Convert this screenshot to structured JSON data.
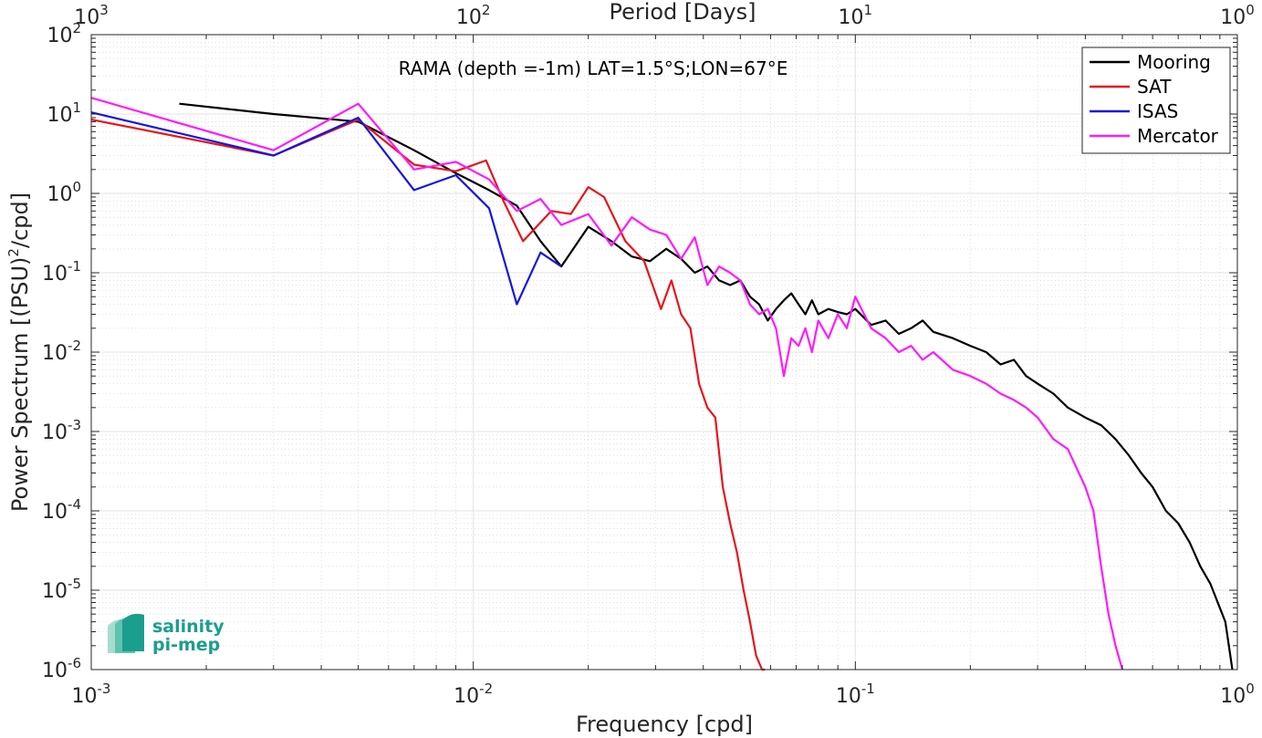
{
  "chart_data": {
    "type": "line",
    "title": "RAMA (depth =-1m) LAT=1.5°S;LON=67°E",
    "xlabel": "Frequency [cpd]",
    "ylabel_main": "Power Spectrum [(PSU)",
    "ylabel_sup": "2",
    "ylabel_end": "/cpd]",
    "top_xlabel": "Period [Days]",
    "x_scale": "log",
    "y_scale": "log",
    "xlim": [
      0.001,
      1
    ],
    "ylim": [
      1e-06,
      100
    ],
    "grid": true,
    "legend_position": "top-right",
    "x_ticks": [
      {
        "v": 0.001,
        "b": "10",
        "e": "-3"
      },
      {
        "v": 0.01,
        "b": "10",
        "e": "-2"
      },
      {
        "v": 0.1,
        "b": "10",
        "e": "-1"
      },
      {
        "v": 1,
        "b": "10",
        "e": "0"
      }
    ],
    "top_ticks": [
      {
        "v": 0.001,
        "b": "10",
        "e": "3"
      },
      {
        "v": 0.01,
        "b": "10",
        "e": "2"
      },
      {
        "v": 0.1,
        "b": "10",
        "e": "1"
      },
      {
        "v": 1,
        "b": "10",
        "e": "0"
      }
    ],
    "y_ticks": [
      {
        "v": 100,
        "b": "10",
        "e": "2"
      },
      {
        "v": 10,
        "b": "10",
        "e": "1"
      },
      {
        "v": 1,
        "b": "10",
        "e": "0"
      },
      {
        "v": 0.1,
        "b": "10",
        "e": "-1"
      },
      {
        "v": 0.01,
        "b": "10",
        "e": "-2"
      },
      {
        "v": 0.001,
        "b": "10",
        "e": "-3"
      },
      {
        "v": 0.0001,
        "b": "10",
        "e": "-4"
      },
      {
        "v": 1e-05,
        "b": "10",
        "e": "-5"
      },
      {
        "v": 1e-06,
        "b": "10",
        "e": "-6"
      }
    ],
    "series": [
      {
        "name": "Mooring",
        "color": "#000000",
        "x": [
          0.0017,
          0.003,
          0.005,
          0.007,
          0.009,
          0.011,
          0.013,
          0.015,
          0.017,
          0.02,
          0.023,
          0.026,
          0.029,
          0.032,
          0.035,
          0.038,
          0.041,
          0.044,
          0.047,
          0.05,
          0.053,
          0.056,
          0.059,
          0.062,
          0.065,
          0.068,
          0.071,
          0.074,
          0.077,
          0.08,
          0.085,
          0.09,
          0.095,
          0.1,
          0.11,
          0.12,
          0.13,
          0.14,
          0.15,
          0.16,
          0.18,
          0.2,
          0.22,
          0.24,
          0.26,
          0.28,
          0.3,
          0.33,
          0.36,
          0.4,
          0.44,
          0.48,
          0.52,
          0.56,
          0.6,
          0.65,
          0.7,
          0.75,
          0.8,
          0.85,
          0.9,
          0.93,
          0.95,
          0.97
        ],
        "y": [
          13.5,
          10,
          8,
          3.5,
          1.8,
          1.1,
          0.7,
          0.25,
          0.12,
          0.38,
          0.25,
          0.16,
          0.14,
          0.2,
          0.15,
          0.1,
          0.12,
          0.08,
          0.07,
          0.08,
          0.05,
          0.04,
          0.025,
          0.035,
          0.045,
          0.055,
          0.04,
          0.03,
          0.045,
          0.03,
          0.035,
          0.032,
          0.03,
          0.035,
          0.022,
          0.025,
          0.017,
          0.02,
          0.025,
          0.018,
          0.015,
          0.012,
          0.01,
          0.007,
          0.008,
          0.005,
          0.004,
          0.003,
          0.002,
          0.0015,
          0.0012,
          0.0008,
          0.0005,
          0.0003,
          0.0002,
          0.0001,
          7e-05,
          4e-05,
          2e-05,
          1.2e-05,
          6e-06,
          4e-06,
          2e-06,
          1e-06
        ]
      },
      {
        "name": "SAT",
        "color": "#e6151b",
        "x": [
          0.001,
          0.003,
          0.005,
          0.007,
          0.009,
          0.0108,
          0.012,
          0.0135,
          0.016,
          0.018,
          0.02,
          0.022,
          0.025,
          0.028,
          0.031,
          0.033,
          0.035,
          0.037,
          0.039,
          0.041,
          0.043,
          0.045,
          0.047,
          0.049,
          0.051,
          0.053,
          0.055,
          0.057,
          0.058
        ],
        "y": [
          8.5,
          3,
          8.5,
          2.3,
          1.9,
          2.6,
          0.8,
          0.25,
          0.6,
          0.55,
          1.2,
          0.9,
          0.25,
          0.14,
          0.035,
          0.08,
          0.03,
          0.02,
          0.004,
          0.002,
          0.0015,
          0.0002,
          7e-05,
          3e-05,
          1e-05,
          4e-06,
          1.5e-06,
          1e-06,
          1e-06
        ]
      },
      {
        "name": "ISAS",
        "color": "#1515e0",
        "x": [
          0.001,
          0.003,
          0.005,
          0.007,
          0.009,
          0.011,
          0.013,
          0.015,
          0.017
        ],
        "y": [
          10.5,
          3,
          9,
          1.1,
          1.7,
          0.65,
          0.04,
          0.18,
          0.12
        ]
      },
      {
        "name": "Mercator",
        "color": "#ff1aff",
        "x": [
          0.001,
          0.003,
          0.005,
          0.007,
          0.009,
          0.011,
          0.013,
          0.015,
          0.017,
          0.02,
          0.023,
          0.026,
          0.029,
          0.032,
          0.035,
          0.038,
          0.041,
          0.044,
          0.047,
          0.05,
          0.053,
          0.056,
          0.059,
          0.062,
          0.065,
          0.068,
          0.071,
          0.074,
          0.077,
          0.08,
          0.085,
          0.09,
          0.095,
          0.1,
          0.11,
          0.12,
          0.13,
          0.14,
          0.15,
          0.16,
          0.18,
          0.2,
          0.22,
          0.24,
          0.26,
          0.28,
          0.3,
          0.33,
          0.36,
          0.4,
          0.42,
          0.44,
          0.46,
          0.48,
          0.5
        ],
        "y": [
          16,
          3.5,
          13.5,
          2,
          2.5,
          1.5,
          0.6,
          0.85,
          0.4,
          0.55,
          0.22,
          0.5,
          0.35,
          0.3,
          0.15,
          0.28,
          0.07,
          0.12,
          0.1,
          0.08,
          0.04,
          0.03,
          0.035,
          0.02,
          0.005,
          0.015,
          0.012,
          0.02,
          0.01,
          0.025,
          0.015,
          0.03,
          0.02,
          0.05,
          0.02,
          0.015,
          0.01,
          0.012,
          0.008,
          0.01,
          0.006,
          0.005,
          0.004,
          0.003,
          0.0025,
          0.002,
          0.0015,
          0.0008,
          0.0006,
          0.0002,
          0.0001,
          2e-05,
          5e-06,
          2e-06,
          1e-06
        ]
      }
    ]
  },
  "logo": {
    "line1": "salinity",
    "line2": "pi-mep"
  }
}
